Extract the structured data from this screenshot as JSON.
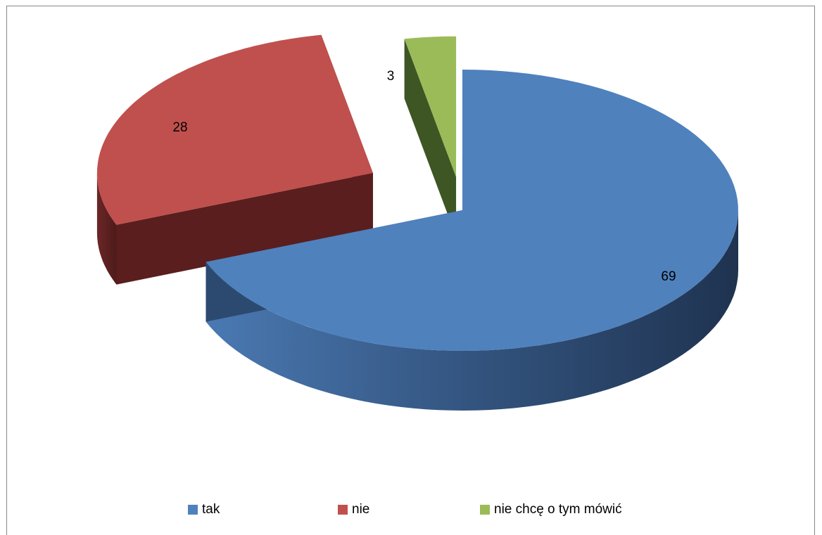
{
  "chart_data": {
    "type": "pie",
    "style": "3d-exploded",
    "categories": [
      "tak",
      "nie",
      "nie chcę o tym mówić"
    ],
    "values": [
      69,
      28,
      3
    ],
    "data_labels": [
      "69",
      "28",
      "3"
    ],
    "colors": [
      "#4F81BD",
      "#C0504D",
      "#9BBB59"
    ],
    "side_colors": [
      "#2C4A70",
      "#5A1E1E",
      "#3E5524"
    ],
    "title": "",
    "legend_placement": "bottom",
    "grid": false
  },
  "legend": {
    "items": [
      {
        "label": "tak",
        "color": "#4F81BD"
      },
      {
        "label": "nie",
        "color": "#C0504D"
      },
      {
        "label": "nie chcę o tym mówić",
        "color": "#9BBB59"
      }
    ]
  }
}
